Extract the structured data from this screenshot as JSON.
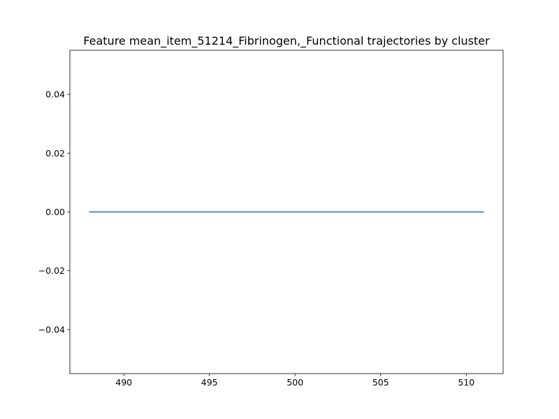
{
  "chart_data": {
    "type": "line",
    "title": "Feature mean_item_51214_Fibrinogen,_Functional trajectories by cluster",
    "xlabel": "",
    "ylabel": "",
    "xlim": [
      486.85,
      512.15
    ],
    "ylim": [
      -0.055,
      0.055
    ],
    "x_ticks": [
      490,
      495,
      500,
      505,
      510
    ],
    "y_ticks": [
      -0.04,
      -0.02,
      0.0,
      0.02,
      0.04
    ],
    "x_tick_labels": [
      "490",
      "495",
      "500",
      "505",
      "510"
    ],
    "y_tick_labels": [
      "−0.04",
      "−0.02",
      "0.00",
      "0.02",
      "0.04"
    ],
    "grid": false,
    "series": [
      {
        "color": "#1f77b4",
        "x": [
          488,
          489,
          490,
          491,
          492,
          493,
          494,
          495,
          496,
          497,
          498,
          499,
          500,
          501,
          502,
          503,
          504,
          505,
          506,
          507,
          508,
          509,
          510,
          511
        ],
        "y": [
          0,
          0,
          0,
          0,
          0,
          0,
          0,
          0,
          0,
          0,
          0,
          0,
          0,
          0,
          0,
          0,
          0,
          0,
          0,
          0,
          0,
          0,
          0,
          0
        ]
      }
    ]
  }
}
